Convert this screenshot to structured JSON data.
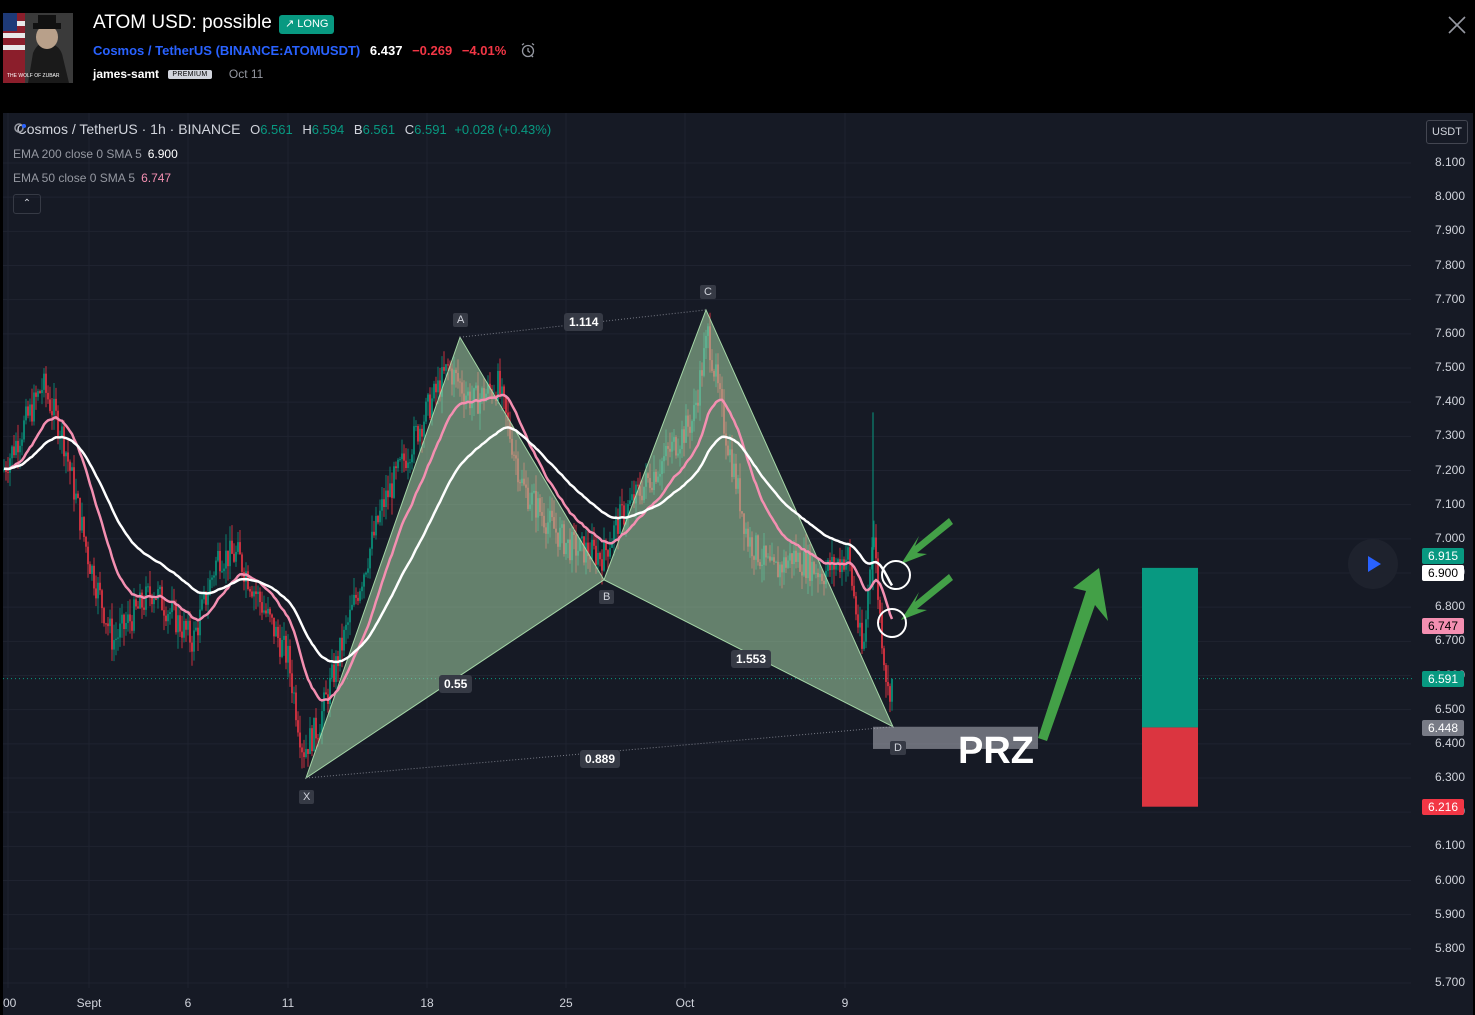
{
  "header": {
    "title": "ATOM USD: possible",
    "badge": "↗ LONG",
    "symbol_name": "Cosmos / TetherUS",
    "symbol_open": " (",
    "symbol_ticker": "BINANCE:ATOMUSDT",
    "symbol_close": ")",
    "price": "6.437",
    "change": "−0.269",
    "change_pct": "−4.01%",
    "author": "james-samt",
    "premium": "PREMIUM",
    "date": "Oct 11",
    "avatar_caption": "THE WOLF OF ZUBAR",
    "icons": {
      "alarm": "alarm-icon",
      "close": "close-icon"
    }
  },
  "chart": {
    "legend": {
      "symbol": "Cosmos / TetherUS · 1h · BINANCE",
      "o_label": "O",
      "o": "6.561",
      "h_label": "H",
      "h": "6.594",
      "l_label": "B",
      "l": "6.561",
      "c_label": "C",
      "c": "6.591",
      "change": "+0.028 (+0.43%)"
    },
    "ema200": {
      "label": "EMA 200 close 0 SMA 5",
      "value": "6.900"
    },
    "ema50": {
      "label": "EMA 50 close 0 SMA 5",
      "value": "6.747"
    },
    "collapse": "⌃",
    "currency": "USDT",
    "y_axis": [
      "8.100",
      "8.000",
      "7.900",
      "7.800",
      "7.700",
      "7.600",
      "7.500",
      "7.400",
      "7.300",
      "7.200",
      "7.100",
      "7.000",
      "6.900",
      "6.800",
      "6.700",
      "6.600",
      "6.500",
      "6.400",
      "6.300",
      "6.200",
      "6.100",
      "6.000",
      "5.900",
      "5.800",
      "5.700"
    ],
    "x_axis": [
      ":00",
      "Sept",
      "6",
      "11",
      "18",
      "25",
      "Oct",
      "9"
    ],
    "price_tags": {
      "tp": "6.915",
      "ema200": "6.900",
      "ema50": "6.747",
      "last": "6.591",
      "entry": "6.448",
      "stop": "6.216"
    },
    "pattern_points": {
      "X": "X",
      "A": "A",
      "B": "B",
      "C": "C",
      "D": "D"
    },
    "ratios": {
      "xb": "0.55",
      "ac": "1.114",
      "bd": "1.553",
      "xd": "0.889"
    },
    "prz": "PRZ",
    "colors": {
      "up": "#089981",
      "down": "#f23645",
      "ema200": "#ffffff",
      "ema50": "#f48fb1",
      "pattern": "#a5d6a7",
      "arrow": "#43a047"
    }
  },
  "chart_data": {
    "type": "candlestick",
    "title": "Cosmos / TetherUS · 1h · BINANCE",
    "ylim": [
      5.7,
      8.1
    ],
    "x_ticks": [
      ":00",
      "Sept",
      "6",
      "11",
      "18",
      "25",
      "Oct",
      "9"
    ],
    "harmonic": [
      {
        "point": "X",
        "price": 6.3
      },
      {
        "point": "A",
        "price": 7.59
      },
      {
        "point": "B",
        "price": 6.88
      },
      {
        "point": "C",
        "price": 7.67
      },
      {
        "point": "D",
        "price": 6.45
      }
    ],
    "position": {
      "entry": 6.448,
      "target": 6.915,
      "stop": 6.216
    },
    "key_path": [
      [
        0,
        7.2
      ],
      [
        40,
        7.45
      ],
      [
        60,
        7.3
      ],
      [
        85,
        6.95
      ],
      [
        110,
        6.7
      ],
      [
        150,
        6.85
      ],
      [
        190,
        6.7
      ],
      [
        215,
        6.95
      ],
      [
        235,
        6.95
      ],
      [
        260,
        6.8
      ],
      [
        285,
        6.65
      ],
      [
        300,
        6.38
      ],
      [
        315,
        6.45
      ],
      [
        345,
        6.75
      ],
      [
        380,
        7.1
      ],
      [
        420,
        7.35
      ],
      [
        445,
        7.5
      ],
      [
        470,
        7.4
      ],
      [
        495,
        7.45
      ],
      [
        520,
        7.15
      ],
      [
        545,
        7.05
      ],
      [
        565,
        6.98
      ],
      [
        600,
        6.95
      ],
      [
        615,
        7.05
      ],
      [
        640,
        7.15
      ],
      [
        665,
        7.25
      ],
      [
        690,
        7.35
      ],
      [
        705,
        7.6
      ],
      [
        720,
        7.35
      ],
      [
        745,
        7.0
      ],
      [
        770,
        6.9
      ],
      [
        790,
        6.95
      ],
      [
        820,
        6.9
      ],
      [
        845,
        6.95
      ],
      [
        860,
        6.65
      ],
      [
        870,
        7.05
      ],
      [
        876,
        6.8
      ],
      [
        885,
        6.55
      ],
      [
        890,
        6.59
      ]
    ]
  }
}
